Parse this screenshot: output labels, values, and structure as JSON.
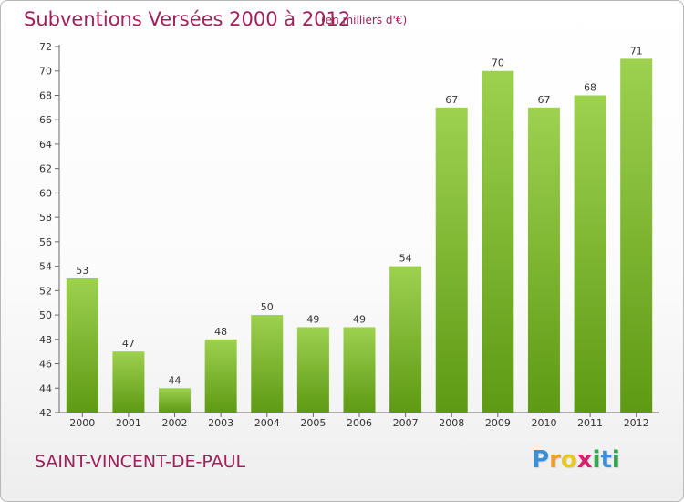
{
  "chart_data": {
    "type": "bar",
    "title": "Subventions Versées 2000 à 2012",
    "subtitle": "(en milliers d'€)",
    "categories": [
      "2000",
      "2001",
      "2002",
      "2003",
      "2004",
      "2005",
      "2006",
      "2007",
      "2008",
      "2009",
      "2010",
      "2011",
      "2012"
    ],
    "values": [
      53,
      47,
      44,
      48,
      50,
      49,
      49,
      54,
      67,
      70,
      67,
      68,
      71
    ],
    "ylim": [
      42,
      72
    ],
    "yticks": [
      42,
      44,
      46,
      48,
      50,
      52,
      54,
      56,
      58,
      60,
      62,
      64,
      66,
      68,
      70,
      72
    ],
    "grid": false,
    "bar_color_top": "#9dd14f",
    "bar_color_bottom": "#5e9a14"
  },
  "footer": {
    "place": "SAINT-VINCENT-DE-PAUL",
    "logo_letters": [
      "P",
      "r",
      "o",
      "x",
      "i",
      "t",
      "i"
    ],
    "logo_colors": [
      "#3b8fd6",
      "#f0a020",
      "#e8c820",
      "#d81f6c",
      "#2ea84a",
      "#3b8fd6",
      "#2ea84a"
    ]
  }
}
